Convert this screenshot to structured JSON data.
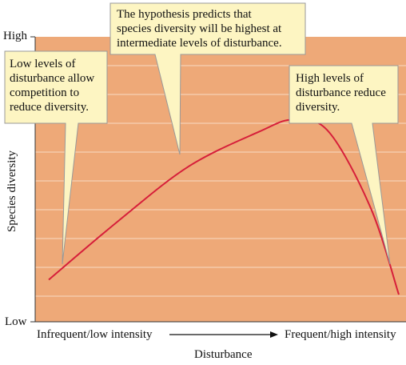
{
  "axes": {
    "y_label": "Species diversity",
    "y_high": "High",
    "y_low": "Low",
    "x_label": "Disturbance",
    "x_left": "Infrequent/low intensity",
    "x_right": "Frequent/high intensity"
  },
  "callouts": {
    "left": "Low levels of\ndisturbance allow\ncompetition to\nreduce diversity.",
    "top": "The hypothesis predicts that\nspecies diversity will be highest at\nintermediate levels of disturbance.",
    "right": "High levels of\ndisturbance reduce\ndiversity."
  },
  "colors": {
    "plot_background": "#eea978",
    "gridline": "#f8dcc4",
    "curve": "#d61f3a",
    "callout_fill": "#fdf5c2",
    "callout_border": "#999999"
  },
  "chart_data": {
    "type": "line",
    "y_categories": [
      "Low",
      "High"
    ],
    "x_categories": [
      "Infrequent/low intensity",
      "Frequent/high intensity"
    ],
    "series": [
      {
        "values": [
          0.06,
          0.3,
          0.52,
          0.66,
          0.71,
          0.66,
          0.35,
          0.0
        ]
      }
    ],
    "x": [
      0.0,
      0.2,
      0.4,
      0.6,
      0.7,
      0.8,
      0.92,
      1.0
    ],
    "ylim": [
      0,
      1
    ],
    "xlim": [
      0,
      1
    ]
  }
}
